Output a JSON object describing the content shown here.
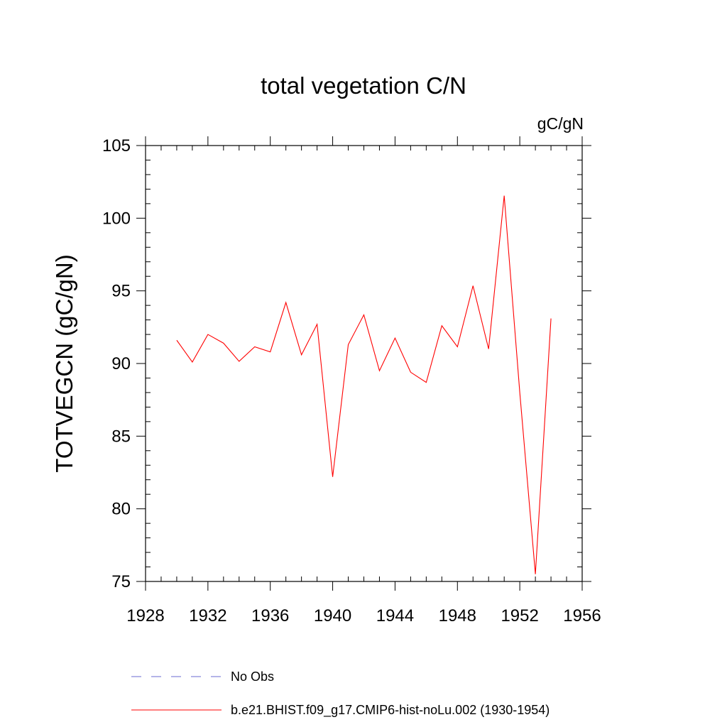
{
  "chart_data": {
    "type": "line",
    "title": "total vegetation C/N",
    "units": "gC/gN",
    "xlabel": "",
    "ylabel": "TOTVEGCN  (gC/gN)",
    "xlim": [
      1928,
      1956
    ],
    "ylim": [
      75,
      105
    ],
    "x_ticks": [
      "1928",
      "1932",
      "1936",
      "1940",
      "1944",
      "1948",
      "1952",
      "1956"
    ],
    "y_ticks": [
      "75",
      "80",
      "85",
      "90",
      "95",
      "100",
      "105"
    ],
    "grid": false,
    "legend_position": "bottom",
    "legend": [
      {
        "label": "No Obs",
        "color": "#6a6ad0",
        "style": "dashed"
      },
      {
        "label": "b.e21.BHIST.f09_g17.CMIP6-hist-noLu.002 (1930-1954)",
        "color": "#ff0000",
        "style": "solid"
      }
    ],
    "series": [
      {
        "name": "b.e21.BHIST.f09_g17.CMIP6-hist-noLu.002 (1930-1954)",
        "color": "#ff0000",
        "x": [
          1930,
          1931,
          1932,
          1933,
          1934,
          1935,
          1936,
          1937,
          1938,
          1939,
          1940,
          1941,
          1942,
          1943,
          1944,
          1945,
          1946,
          1947,
          1948,
          1949,
          1950,
          1951,
          1952,
          1953,
          1954
        ],
        "y": [
          91.6,
          90.1,
          92.0,
          91.4,
          90.15,
          91.15,
          90.8,
          94.2,
          90.6,
          92.7,
          82.2,
          91.3,
          93.35,
          89.5,
          91.75,
          89.4,
          88.7,
          92.6,
          91.15,
          95.35,
          91.0,
          101.55,
          88.0,
          75.5,
          93.1
        ]
      }
    ]
  }
}
